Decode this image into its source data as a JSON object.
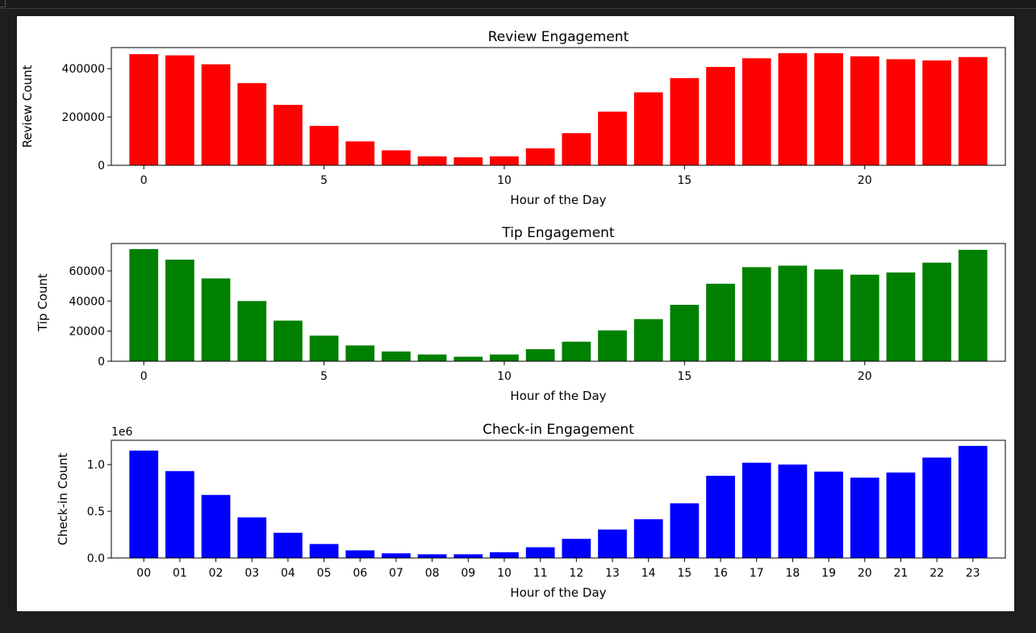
{
  "chart_data": [
    {
      "type": "bar",
      "title": "Review Engagement",
      "xlabel": "Hour of the Day",
      "ylabel": "Review Count",
      "color": "#ff0000",
      "x": [
        0,
        1,
        2,
        3,
        4,
        5,
        6,
        7,
        8,
        9,
        10,
        11,
        12,
        13,
        14,
        15,
        16,
        17,
        18,
        19,
        20,
        21,
        22,
        23
      ],
      "values": [
        460000,
        455000,
        418000,
        340000,
        250000,
        163000,
        99000,
        62000,
        37000,
        33000,
        37000,
        70000,
        133000,
        222000,
        302000,
        361000,
        407000,
        443000,
        464000,
        464000,
        451000,
        439000,
        434000,
        448000
      ],
      "ylim": [
        0,
        487200
      ],
      "xlim": [
        -0.9,
        23.9
      ],
      "yticks": [
        0,
        200000,
        400000
      ],
      "ytick_labels": [
        "0",
        "200000",
        "400000"
      ],
      "xticks": [
        0,
        5,
        10,
        15,
        20
      ],
      "xtick_labels": [
        "0",
        "5",
        "10",
        "15",
        "20"
      ],
      "offset_label": "",
      "grid": false
    },
    {
      "type": "bar",
      "title": "Tip Engagement",
      "xlabel": "Hour of the Day",
      "ylabel": "Tip Count",
      "color": "#008000",
      "x": [
        0,
        1,
        2,
        3,
        4,
        5,
        6,
        7,
        8,
        9,
        10,
        11,
        12,
        13,
        14,
        15,
        16,
        17,
        18,
        19,
        20,
        21,
        22,
        23
      ],
      "values": [
        74500,
        67500,
        55000,
        40000,
        27000,
        17000,
        10500,
        6500,
        4500,
        3000,
        4500,
        8000,
        13000,
        20500,
        28000,
        37500,
        51500,
        62500,
        63500,
        61000,
        57500,
        59000,
        65500,
        74000
      ],
      "ylim": [
        0,
        78200
      ],
      "xlim": [
        -0.9,
        23.9
      ],
      "yticks": [
        0,
        20000,
        40000,
        60000
      ],
      "ytick_labels": [
        "0",
        "20000",
        "40000",
        "60000"
      ],
      "xticks": [
        0,
        5,
        10,
        15,
        20
      ],
      "xtick_labels": [
        "0",
        "5",
        "10",
        "15",
        "20"
      ],
      "offset_label": "",
      "grid": false
    },
    {
      "type": "bar",
      "title": "Check-in Engagement",
      "xlabel": "Hour of the Day",
      "ylabel": "Check-in Count",
      "color": "#0000ff",
      "x": [
        "00",
        "01",
        "02",
        "03",
        "04",
        "05",
        "06",
        "07",
        "08",
        "09",
        "10",
        "11",
        "12",
        "13",
        "14",
        "15",
        "16",
        "17",
        "18",
        "19",
        "20",
        "21",
        "22",
        "23"
      ],
      "values": [
        1150000,
        930000,
        675000,
        435000,
        270000,
        150000,
        82000,
        50000,
        40000,
        40000,
        62000,
        115000,
        205000,
        305000,
        415000,
        585000,
        880000,
        1020000,
        1000000,
        925000,
        860000,
        915000,
        1075000,
        1200000
      ],
      "ylim": [
        0,
        1260000
      ],
      "xlim": [
        -0.9,
        23.9
      ],
      "yticks": [
        0,
        500000,
        1000000
      ],
      "ytick_labels": [
        "0.0",
        "0.5",
        "1.0"
      ],
      "xticks": [
        0,
        1,
        2,
        3,
        4,
        5,
        6,
        7,
        8,
        9,
        10,
        11,
        12,
        13,
        14,
        15,
        16,
        17,
        18,
        19,
        20,
        21,
        22,
        23
      ],
      "xtick_labels": [
        "00",
        "01",
        "02",
        "03",
        "04",
        "05",
        "06",
        "07",
        "08",
        "09",
        "10",
        "11",
        "12",
        "13",
        "14",
        "15",
        "16",
        "17",
        "18",
        "19",
        "20",
        "21",
        "22",
        "23"
      ],
      "offset_label": "1e6",
      "grid": false
    }
  ]
}
